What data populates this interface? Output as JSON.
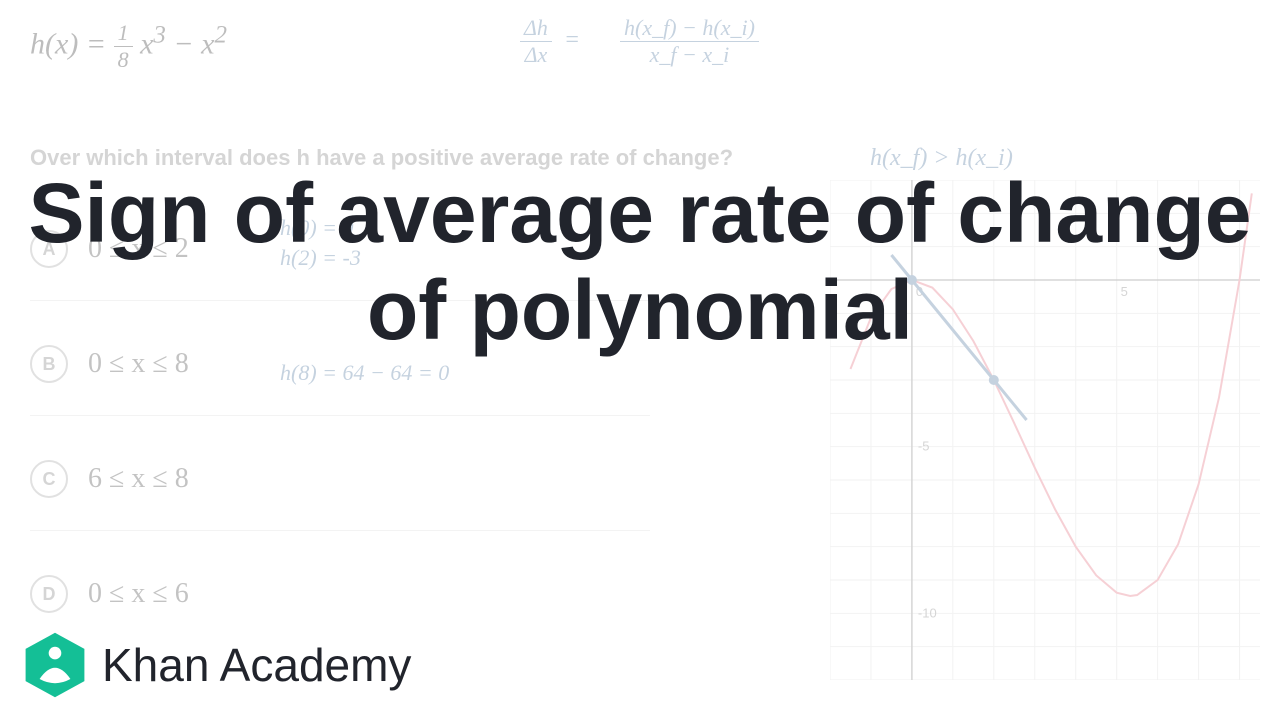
{
  "formula_left": "h(x) = (1/8)x³ − x²",
  "handwritten": {
    "ratio_left": "Δh / Δx",
    "ratio_right_num": "h(x_f) − h(x_i)",
    "ratio_right_den": "x_f − x_i",
    "ineq": "h(x_f) > h(x_i)",
    "work_a1": "h(0) = 0",
    "work_a2": "h(2) = -3",
    "work_b": "h(8) = 64 − 64 = 0"
  },
  "question": "Over which interval does h have a positive average rate of change?",
  "choices": [
    {
      "letter": "A",
      "text": "0 ≤ x ≤ 2"
    },
    {
      "letter": "B",
      "text": "0 ≤ x ≤ 8"
    },
    {
      "letter": "C",
      "text": "6 ≤ x ≤ 8"
    },
    {
      "letter": "D",
      "text": "0 ≤ x ≤ 6"
    }
  ],
  "chart": {
    "type": "line",
    "curve_color": "#e77b8a",
    "secant_color": "#5b7fa6",
    "grid_color": "#dcdcdc",
    "axis_color": "#888888",
    "bg": "#ffffff",
    "x_ticks": [
      0,
      5
    ],
    "y_ticks": [
      0,
      -5,
      -10
    ],
    "xlim": [
      -2,
      8.5
    ],
    "ylim": [
      -12,
      3
    ],
    "tick_fontsize": 13,
    "secant_points": [
      [
        0,
        0
      ],
      [
        2,
        -3
      ]
    ],
    "curve_points": [
      [
        -1.5,
        -2.67
      ],
      [
        -1,
        -1.13
      ],
      [
        -0.5,
        -0.27
      ],
      [
        0,
        0
      ],
      [
        0.5,
        -0.23
      ],
      [
        1,
        -0.88
      ],
      [
        1.5,
        -1.83
      ],
      [
        2,
        -3
      ],
      [
        2.5,
        -4.3
      ],
      [
        3,
        -5.63
      ],
      [
        3.5,
        -6.89
      ],
      [
        4,
        -8
      ],
      [
        4.5,
        -8.86
      ],
      [
        5,
        -9.38
      ],
      [
        5.33,
        -9.48
      ],
      [
        5.5,
        -9.45
      ],
      [
        6,
        -9
      ],
      [
        6.5,
        -7.93
      ],
      [
        7,
        -6.13
      ],
      [
        7.5,
        -3.52
      ],
      [
        8,
        0
      ],
      [
        8.3,
        2.6
      ]
    ]
  },
  "title": "Sign of average rate of change of polynomial",
  "brand": "Khan Academy",
  "colors": {
    "title": "#21242c",
    "logo": "#14bf96"
  }
}
